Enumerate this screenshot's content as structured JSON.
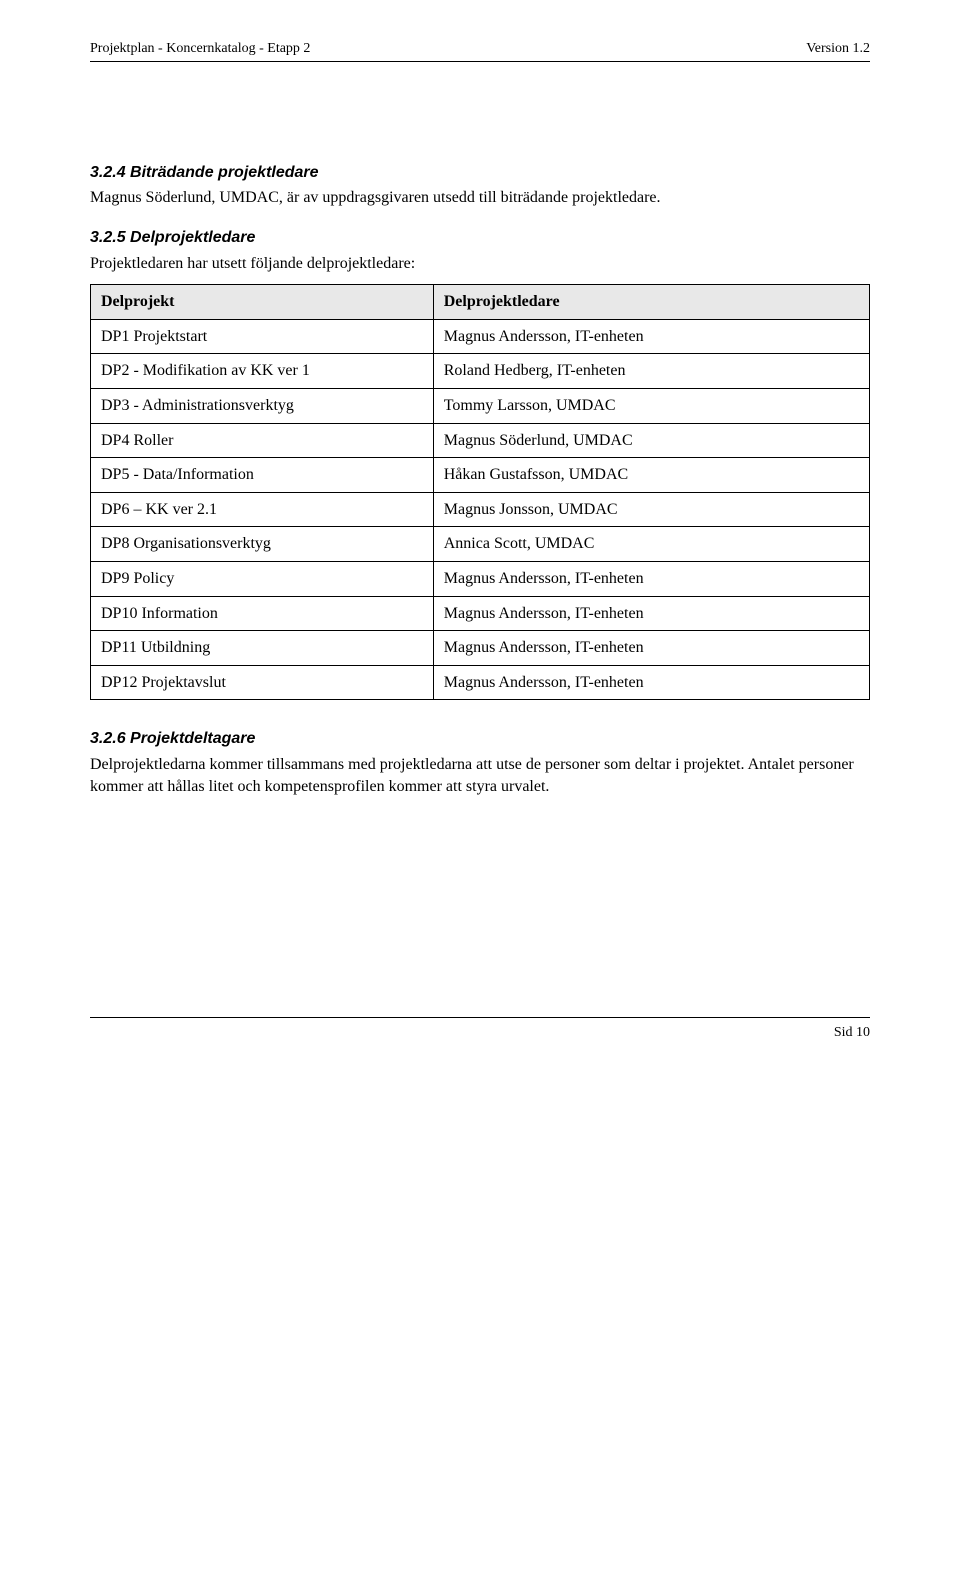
{
  "header": {
    "left": "Projektplan  -  Koncernkatalog  -  Etapp 2",
    "right": "Version 1.2"
  },
  "sections": [
    {
      "heading": "3.2.4  Biträdande projektledare",
      "body": "Magnus Söderlund, UMDAC, är av uppdragsgivaren utsedd till biträdande projektledare."
    },
    {
      "heading": "3.2.5  Delprojektledare",
      "body": "Projektledaren har utsett följande delprojektledare:"
    }
  ],
  "table": {
    "columns": [
      "Delprojekt",
      "Delprojektledare"
    ],
    "rows": [
      [
        "DP1 Projektstart",
        "Magnus Andersson, IT-enheten"
      ],
      [
        "DP2 - Modifikation av KK ver 1",
        "Roland Hedberg, IT-enheten"
      ],
      [
        "DP3 - Administrationsverktyg",
        "Tommy Larsson, UMDAC"
      ],
      [
        "DP4 Roller",
        "Magnus Söderlund, UMDAC"
      ],
      [
        "DP5 - Data/Information",
        "Håkan Gustafsson, UMDAC"
      ],
      [
        "DP6 – KK ver 2.1",
        "Magnus Jonsson, UMDAC"
      ],
      [
        "DP8 Organisationsverktyg",
        "Annica Scott, UMDAC"
      ],
      [
        "DP9 Policy",
        "Magnus Andersson, IT-enheten"
      ],
      [
        "DP10 Information",
        "Magnus Andersson, IT-enheten"
      ],
      [
        "DP11 Utbildning",
        "Magnus Andersson, IT-enheten"
      ],
      [
        "DP12 Projektavslut",
        "Magnus Andersson, IT-enheten"
      ]
    ]
  },
  "section3": {
    "heading": "3.2.6  Projektdeltagare",
    "body": "Delprojektledarna kommer tillsammans med projektledarna att utse de personer som deltar i projektet. Antalet personer kommer att hållas litet och kompetensprofilen kommer att styra urvalet."
  },
  "footer": {
    "right": "Sid 10"
  }
}
